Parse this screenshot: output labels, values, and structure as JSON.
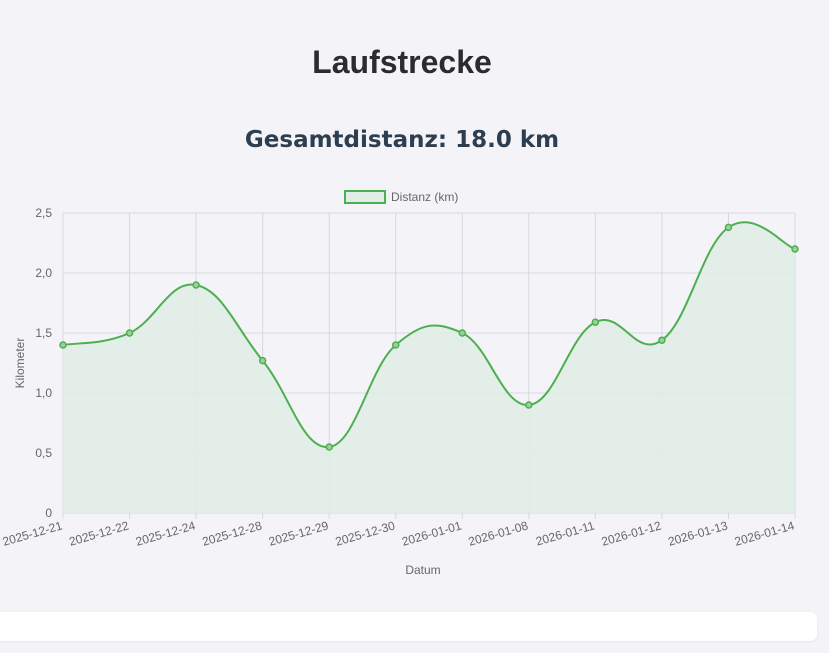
{
  "page": {
    "title": "Laufstrecke",
    "total_distance": "Gesamtdistanz: 18.0 km"
  },
  "colors": {
    "line": "#4caf50",
    "fill": "#e2ede6",
    "grid": "#d7d7df",
    "text": "#666666",
    "title": "#2c2c2c",
    "subtitle": "#2c3e50"
  },
  "chart_data": {
    "type": "line",
    "title": "",
    "xlabel": "Datum",
    "ylabel": "Kilometer",
    "ylim": [
      0,
      2.5
    ],
    "yticks": [
      0,
      0.5,
      1.0,
      1.5,
      2.0,
      2.5
    ],
    "ytick_labels": [
      "0",
      "0,5",
      "1,0",
      "1,5",
      "2,0",
      "2,5"
    ],
    "grid": true,
    "legend_position": "top",
    "x": [
      "2025-12-21",
      "2025-12-22",
      "2025-12-24",
      "2025-12-28",
      "2025-12-29",
      "2025-12-30",
      "2026-01-01",
      "2026-01-08",
      "2026-01-11",
      "2026-01-12",
      "2026-01-13",
      "2026-01-14"
    ],
    "series": [
      {
        "name": "Distanz (km)",
        "values": [
          1.4,
          1.5,
          1.9,
          1.27,
          0.55,
          1.4,
          1.5,
          0.9,
          1.59,
          1.44,
          2.38,
          2.2
        ]
      }
    ]
  }
}
